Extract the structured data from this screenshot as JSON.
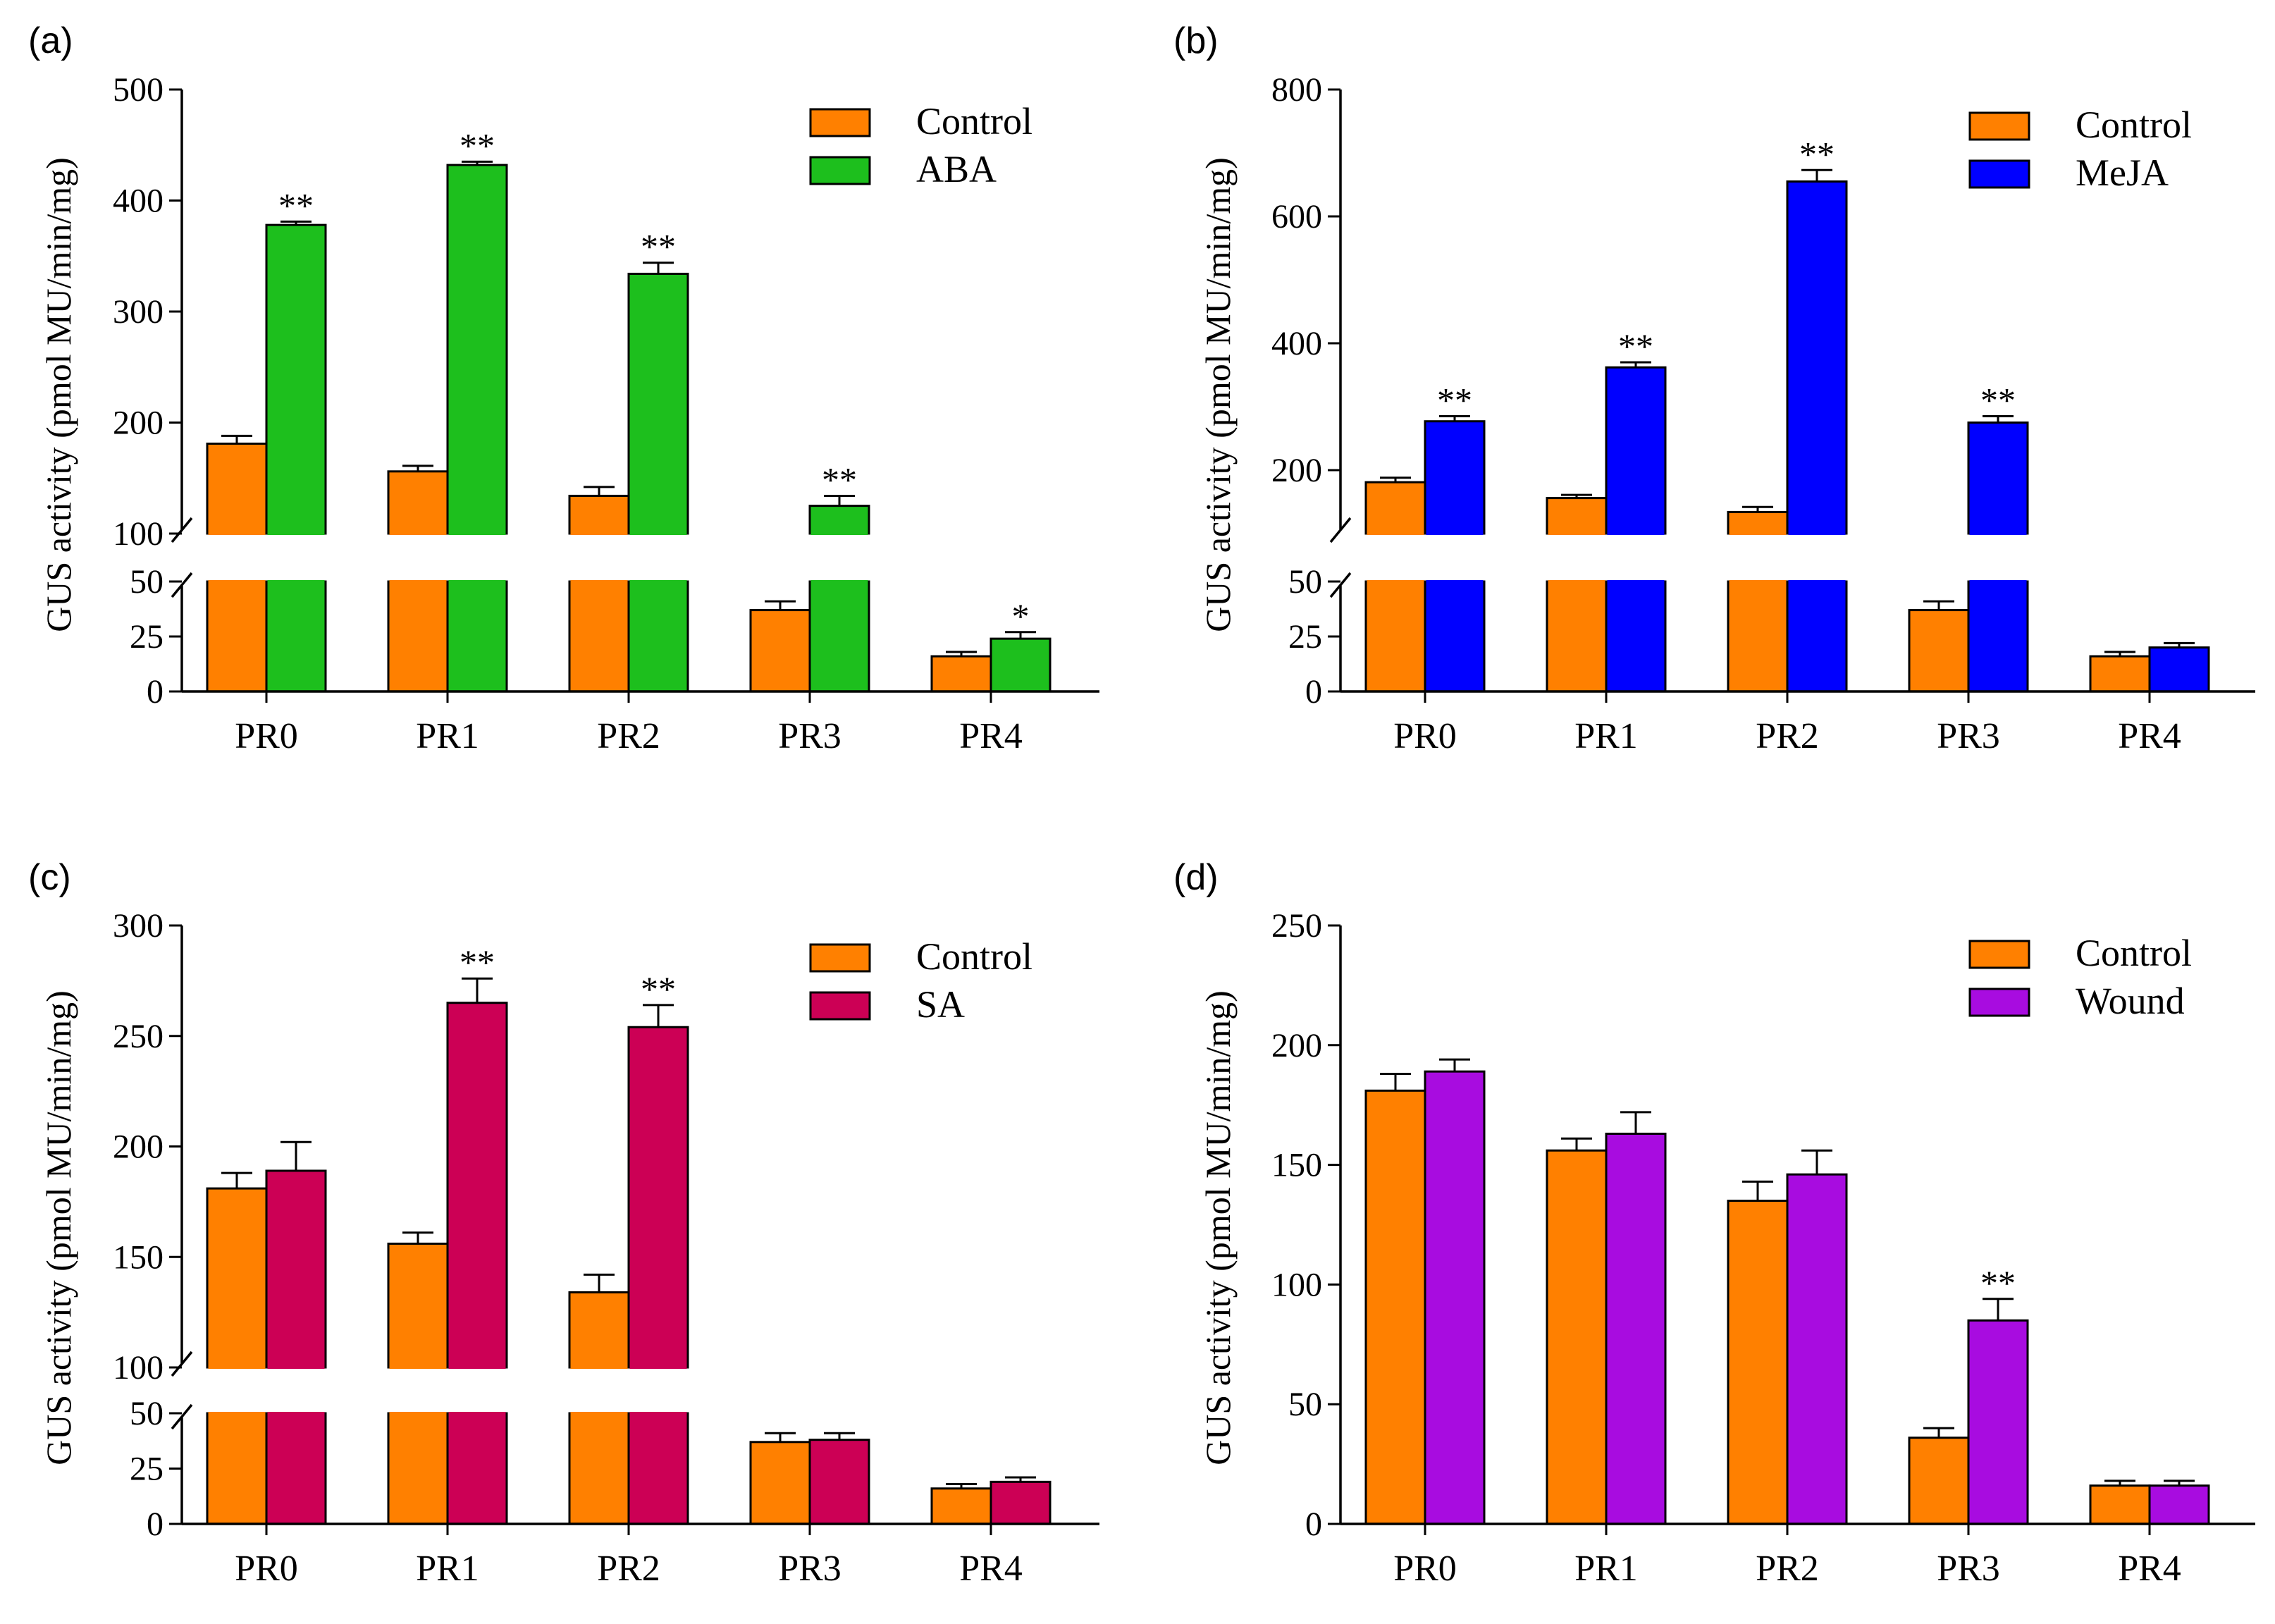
{
  "chart_data": [
    {
      "panel_label": "(a)",
      "type": "bar",
      "ylabel": "GUS activity (pmol MU/min/mg)",
      "categories": [
        "PR0",
        "PR1",
        "PR2",
        "PR3",
        "PR4"
      ],
      "broken_axis": true,
      "lower_range": [
        0,
        50
      ],
      "upper_range": [
        100,
        500
      ],
      "lower_ticks": [
        0,
        25,
        50
      ],
      "upper_ticks": [
        100,
        200,
        300,
        400,
        500
      ],
      "lower_tick_labels": [
        "0",
        "25",
        "50"
      ],
      "upper_tick_labels": [
        "100",
        "200",
        "300",
        "400",
        "500"
      ],
      "legend_position": "top-right",
      "series": [
        {
          "name": "Control",
          "color": "#FF8000",
          "values": [
            181,
            156,
            134,
            37,
            16
          ],
          "errors": [
            7,
            5,
            8,
            4,
            2
          ],
          "sig": [
            "",
            "",
            "",
            "",
            ""
          ]
        },
        {
          "name": "ABA",
          "color": "#1DBF1D",
          "values": [
            378,
            432,
            334,
            125,
            24
          ],
          "errors": [
            3,
            3,
            10,
            9,
            3
          ],
          "sig": [
            "**",
            "**",
            "**",
            "**",
            "*"
          ]
        }
      ]
    },
    {
      "panel_label": "(b)",
      "type": "bar",
      "ylabel": "GUS activity (pmol MU/min/mg)",
      "categories": [
        "PR0",
        "PR1",
        "PR2",
        "PR3",
        "PR4"
      ],
      "broken_axis": true,
      "lower_range": [
        0,
        50
      ],
      "upper_range": [
        100,
        800
      ],
      "lower_ticks": [
        0,
        25,
        50
      ],
      "upper_ticks": [
        200,
        400,
        600,
        800
      ],
      "lower_tick_labels": [
        "0",
        "25",
        "50"
      ],
      "upper_tick_labels": [
        "200",
        "400",
        "600",
        "800"
      ],
      "legend_position": "top-right",
      "series": [
        {
          "name": "Control",
          "color": "#FF8000",
          "values": [
            181,
            156,
            134,
            37,
            16
          ],
          "errors": [
            7,
            5,
            8,
            4,
            2
          ],
          "sig": [
            "",
            "",
            "",
            "",
            ""
          ]
        },
        {
          "name": "MeJA",
          "color": "#0000FF",
          "values": [
            277,
            362,
            655,
            275,
            20
          ],
          "errors": [
            8,
            8,
            18,
            10,
            2
          ],
          "sig": [
            "**",
            "**",
            "**",
            "**",
            ""
          ]
        }
      ]
    },
    {
      "panel_label": "(c)",
      "type": "bar",
      "ylabel": "GUS activity (pmol MU/min/mg)",
      "categories": [
        "PR0",
        "PR1",
        "PR2",
        "PR3",
        "PR4"
      ],
      "broken_axis": true,
      "lower_range": [
        0,
        50
      ],
      "upper_range": [
        100,
        300
      ],
      "lower_ticks": [
        0,
        25,
        50
      ],
      "upper_ticks": [
        100,
        150,
        200,
        250,
        300
      ],
      "lower_tick_labels": [
        "0",
        "25",
        "50"
      ],
      "upper_tick_labels": [
        "100",
        "150",
        "200",
        "250",
        "300"
      ],
      "legend_position": "top-right",
      "series": [
        {
          "name": "Control",
          "color": "#FF8000",
          "values": [
            181,
            156,
            134,
            37,
            16
          ],
          "errors": [
            7,
            5,
            8,
            4,
            2
          ],
          "sig": [
            "",
            "",
            "",
            "",
            ""
          ]
        },
        {
          "name": "SA",
          "color": "#CC0055",
          "values": [
            189,
            265,
            254,
            38,
            19
          ],
          "errors": [
            13,
            11,
            10,
            3,
            2
          ],
          "sig": [
            "",
            "**",
            "**",
            "",
            ""
          ]
        }
      ]
    },
    {
      "panel_label": "(d)",
      "type": "bar",
      "ylabel": "GUS activity (pmol MU/min/mg)",
      "categories": [
        "PR0",
        "PR1",
        "PR2",
        "PR3",
        "PR4"
      ],
      "broken_axis": false,
      "ylim": [
        0,
        250
      ],
      "ticks": [
        0,
        50,
        100,
        150,
        200,
        250
      ],
      "tick_labels": [
        "0",
        "50",
        "100",
        "150",
        "200",
        "250"
      ],
      "legend_position": "top-right",
      "series": [
        {
          "name": "Control",
          "color": "#FF8000",
          "values": [
            181,
            156,
            135,
            36,
            16
          ],
          "errors": [
            7,
            5,
            8,
            4,
            2
          ],
          "sig": [
            "",
            "",
            "",
            "",
            ""
          ]
        },
        {
          "name": "Wound",
          "color": "#A80CE0",
          "values": [
            189,
            163,
            146,
            85,
            16
          ],
          "errors": [
            5,
            9,
            10,
            9,
            2
          ],
          "sig": [
            "",
            "",
            "",
            "**",
            ""
          ]
        }
      ]
    }
  ]
}
